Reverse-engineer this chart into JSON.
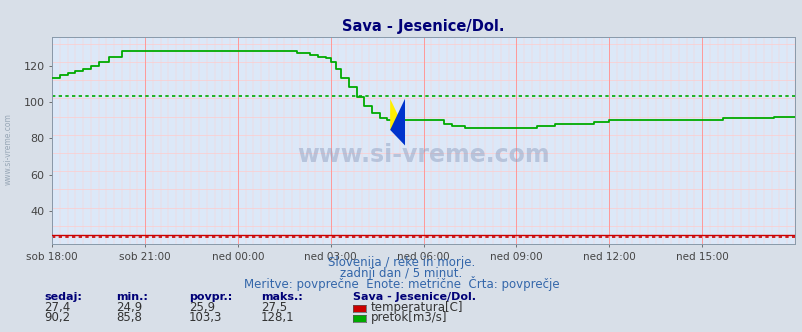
{
  "title": "Sava - Jesenice/Dol.",
  "bg_color": "#d8dfe8",
  "plot_bg_color": "#dce8f8",
  "grid_color_major": "#ff9999",
  "grid_color_minor": "#ffcccc",
  "x_labels": [
    "sob 18:00",
    "sob 21:00",
    "ned 00:00",
    "ned 03:00",
    "ned 06:00",
    "ned 09:00",
    "ned 12:00",
    "ned 15:00"
  ],
  "x_ticks_idx": [
    0,
    36,
    72,
    108,
    144,
    180,
    216,
    252
  ],
  "total_points": 289,
  "ylim": [
    22,
    136
  ],
  "yticks": [
    40,
    60,
    80,
    100,
    120
  ],
  "temp_color": "#cc0000",
  "flow_color": "#00aa00",
  "avg_temp": 25.9,
  "avg_flow": 103.3,
  "subtitle1": "Slovenija / reke in morje.",
  "subtitle2": "zadnji dan / 5 minut.",
  "subtitle3": "Meritve: povprečne  Enote: metrične  Črta: povprečje",
  "text_color": "#3366aa",
  "header_color": "#000077",
  "watermark": "www.si-vreme.com",
  "left_label": "www.si-vreme.com",
  "footer_headers": [
    "sedaj:",
    "min.:",
    "povpr.:",
    "maks.:"
  ],
  "footer_col1": [
    "27,4",
    "90,2"
  ],
  "footer_col2": [
    "24,9",
    "85,8"
  ],
  "footer_col3": [
    "25,9",
    "103,3"
  ],
  "footer_col4": [
    "27,5",
    "128,1"
  ],
  "footer_series": "Sava - Jesenice/Dol.",
  "footer_labels": [
    "temperatura[C]",
    "pretok[m3/s]"
  ],
  "footer_label_colors": [
    "#cc0000",
    "#00aa00"
  ]
}
